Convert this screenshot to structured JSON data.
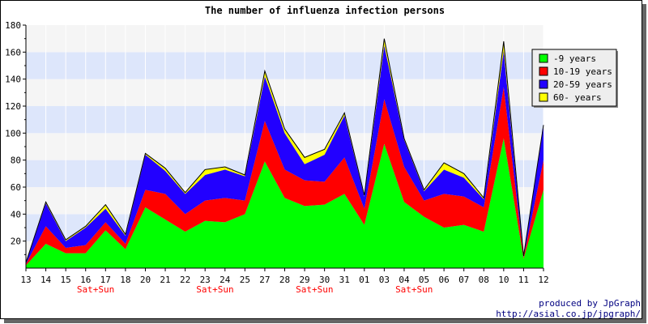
{
  "chart_data": {
    "type": "area",
    "stacked": true,
    "title": "The number of influenza infection persons",
    "xlabel": "",
    "ylabel": "",
    "ylim": [
      0,
      180
    ],
    "yticks": [
      20,
      40,
      60,
      80,
      100,
      120,
      140,
      160,
      180
    ],
    "categories": [
      "13",
      "14",
      "15",
      "16",
      "17",
      "18",
      "20",
      "21",
      "22",
      "23",
      "24",
      "25",
      "27",
      "28",
      "29",
      "30",
      "31",
      "01",
      "03",
      "04",
      "05",
      "06",
      "07",
      "08",
      "10",
      "11",
      "12"
    ],
    "weekend_note": "Sat+Sun",
    "weekend_after": [
      "16",
      "23",
      "29",
      "04"
    ],
    "grid": true,
    "band_colors": [
      "#f5f5f5",
      "#dde6fb"
    ],
    "legend_position": "top-right",
    "series": [
      {
        "name": "-9 years",
        "color": "#00ff00",
        "values": [
          2,
          18,
          11,
          11,
          28,
          14,
          45,
          36,
          27,
          35,
          34,
          40,
          79,
          52,
          46,
          47,
          55,
          32,
          92,
          49,
          38,
          30,
          32,
          27,
          96,
          7,
          58
        ]
      },
      {
        "name": "10-19 years",
        "color": "#ff0000",
        "values": [
          1,
          13,
          4,
          6,
          6,
          4,
          13,
          19,
          13,
          15,
          18,
          10,
          30,
          21,
          19,
          17,
          27,
          12,
          33,
          26,
          12,
          25,
          21,
          18,
          38,
          1,
          22
        ]
      },
      {
        "name": "20-59 years",
        "color": "#2200ff",
        "values": [
          1,
          17,
          5,
          13,
          10,
          6,
          26,
          17,
          15,
          19,
          21,
          18,
          33,
          27,
          12,
          20,
          31,
          9,
          40,
          20,
          7,
          18,
          14,
          6,
          27,
          1,
          25
        ]
      },
      {
        "name": "60- years",
        "color": "#ffff00",
        "values": [
          0,
          1,
          1,
          1,
          3,
          1,
          1,
          2,
          1,
          4,
          2,
          1,
          4,
          3,
          5,
          4,
          2,
          1,
          5,
          1,
          1,
          5,
          3,
          1,
          7,
          0,
          1
        ]
      }
    ]
  },
  "credits": {
    "line1": "produced by JpGraph",
    "line2": "http://asial.co.jp/jpgraph/",
    "color": "#000080"
  }
}
